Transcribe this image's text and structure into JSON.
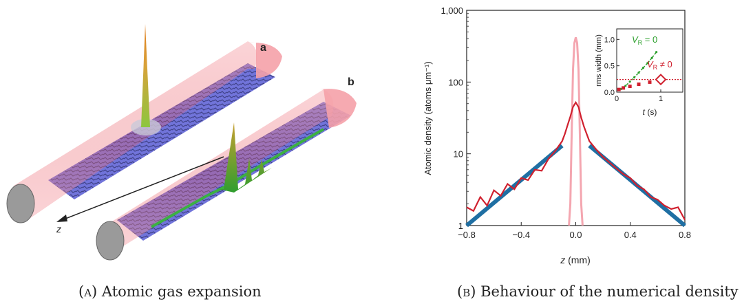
{
  "figure_a": {
    "label_a": "a",
    "label_b": "b",
    "axis_label": "z",
    "caption_label": "(a)",
    "caption_text": "Atomic gas expansion"
  },
  "figure_b": {
    "caption_label": "(b)",
    "caption_text": "Behaviour of the numerical density",
    "inset": {
      "ylabel": "rms width (mm)",
      "xlabel": "t (s)",
      "yticks": [
        "0.0",
        "0.5",
        "1.0"
      ],
      "xticks": [
        "0",
        "1"
      ],
      "legend_green": "V",
      "legend_green_sub": "R",
      "legend_green_rest": " = 0",
      "legend_red": "V",
      "legend_red_sub": "R",
      "legend_red_rest": " ≠ 0"
    }
  },
  "colors": {
    "red_curve": "#d0202e",
    "blue_fit": "#1f6fa3",
    "pink_peak": "#f4a6b0",
    "green": "#2ca02c",
    "sheet": "#5b5fcf",
    "tube": "#f07c84"
  },
  "chart_data": [
    {
      "type": "line",
      "xlabel": "z (mm)",
      "ylabel": "Atomic density (atoms μm⁻¹)",
      "yscale": "log",
      "xlim": [
        -0.8,
        0.8
      ],
      "ylim": [
        1,
        1000
      ],
      "xticks": [
        "−0.8",
        "−0.4",
        "0.0",
        "0.4",
        "0.8"
      ],
      "yticks": [
        "1",
        "10",
        "100",
        "1,000"
      ],
      "series": [
        {
          "x": [
            -0.8,
            -0.75,
            -0.7,
            -0.65,
            -0.6,
            -0.55,
            -0.5,
            -0.45,
            -0.4,
            -0.35,
            -0.3,
            -0.25,
            -0.2,
            -0.15,
            -0.1,
            -0.08,
            -0.06,
            -0.04,
            -0.02,
            0.0,
            0.02,
            0.04,
            0.06,
            0.08,
            0.1,
            0.15,
            0.2,
            0.25,
            0.3,
            0.35,
            0.4,
            0.45,
            0.5,
            0.55,
            0.6,
            0.65,
            0.7,
            0.75,
            0.8
          ],
          "y": [
            1.8,
            1.6,
            2.5,
            1.9,
            3.1,
            2.6,
            3.8,
            3.2,
            4.6,
            4.3,
            6.0,
            5.8,
            8.5,
            11.0,
            15.0,
            19.0,
            25.0,
            33.0,
            45.0,
            52.0,
            45.0,
            32.0,
            24.0,
            19.0,
            15.0,
            11.5,
            9.0,
            7.5,
            6.2,
            5.2,
            4.6,
            3.6,
            3.2,
            2.5,
            2.3,
            1.9,
            1.7,
            1.8,
            1.2
          ]
        },
        {
          "x": [
            -0.8,
            -0.1
          ],
          "y": [
            1.0,
            13.0
          ]
        },
        {
          "x": [
            0.1,
            0.8
          ],
          "y": [
            13.0,
            1.0
          ]
        },
        {
          "x": [
            -0.05,
            -0.04,
            -0.03,
            -0.02,
            -0.01,
            0.0,
            0.01,
            0.02,
            0.03,
            0.04,
            0.05
          ],
          "y": [
            1.0,
            2.0,
            20.0,
            150.0,
            350.0,
            420.0,
            350.0,
            150.0,
            20.0,
            2.0,
            1.0
          ]
        }
      ]
    },
    {
      "type": "scatter",
      "xlabel": "t (s)",
      "ylabel": "rms width (mm)",
      "xlim": [
        0,
        1.5
      ],
      "ylim": [
        0,
        1.2
      ],
      "series": [
        {
          "name": "V_R = 0",
          "x": [
            0.1,
            0.2,
            0.3,
            0.4,
            0.5,
            0.6,
            0.7,
            0.8,
            0.9
          ],
          "y": [
            0.06,
            0.12,
            0.2,
            0.28,
            0.37,
            0.46,
            0.55,
            0.65,
            0.76
          ]
        },
        {
          "name": "V_R ≠ 0",
          "x": [
            0.05,
            0.15,
            0.3,
            0.5,
            0.75,
            1.0
          ],
          "y": [
            0.05,
            0.08,
            0.11,
            0.15,
            0.19,
            0.24
          ]
        }
      ]
    }
  ]
}
